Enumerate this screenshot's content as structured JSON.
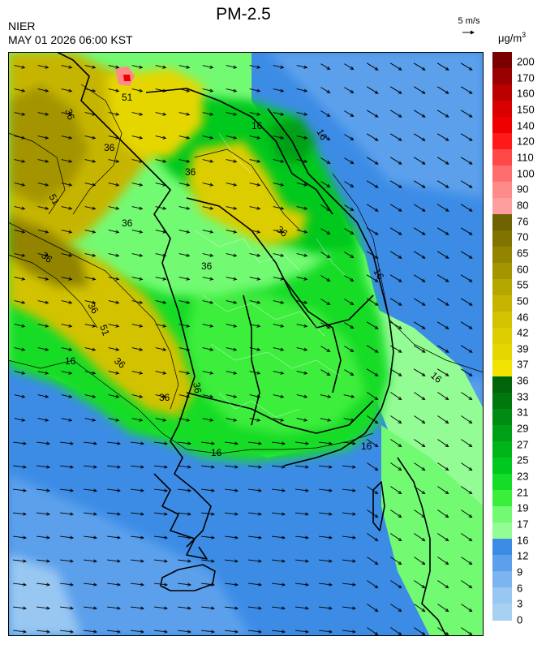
{
  "header": {
    "org": "NIER",
    "timestamp": "MAY 01 2026 06:00 KST",
    "title": "PM-2.5"
  },
  "wind_reference": {
    "label": "5 m/s"
  },
  "legend": {
    "unit_base": "μg/m",
    "unit_exp": "3",
    "ticks": [
      "200",
      "170",
      "160",
      "150",
      "140",
      "120",
      "110",
      "100",
      "90",
      "80",
      "76",
      "70",
      "65",
      "60",
      "55",
      "50",
      "46",
      "42",
      "39",
      "37",
      "36",
      "33",
      "31",
      "29",
      "27",
      "25",
      "23",
      "21",
      "19",
      "17",
      "16",
      "12",
      "9",
      "6",
      "3",
      "0"
    ],
    "colors": [
      "#7a0000",
      "#9a0000",
      "#bb0000",
      "#d80000",
      "#ee0000",
      "#ff1a1a",
      "#ff4848",
      "#ff6e6e",
      "#ff8a8a",
      "#ff9e9e",
      "#6e6300",
      "#807300",
      "#928400",
      "#a49500",
      "#b5a600",
      "#c6b500",
      "#d2c200",
      "#dccd00",
      "#e5d600",
      "#f2e400",
      "#00640a",
      "#00780e",
      "#008c12",
      "#00a016",
      "#00b41a",
      "#00c81e",
      "#14dc28",
      "#3cee3c",
      "#73fa73",
      "#94fc94",
      "#3c8ce6",
      "#5ca0ec",
      "#7cb4f0",
      "#98c8f2",
      "#a8d0f0"
    ]
  },
  "map": {
    "contour_labels": [
      "36",
      "36",
      "36",
      "36",
      "36",
      "36",
      "36",
      "36",
      "36",
      "36",
      "36",
      "51",
      "51",
      "51",
      "16",
      "16",
      "16",
      "16",
      "16",
      "16",
      "16"
    ]
  }
}
